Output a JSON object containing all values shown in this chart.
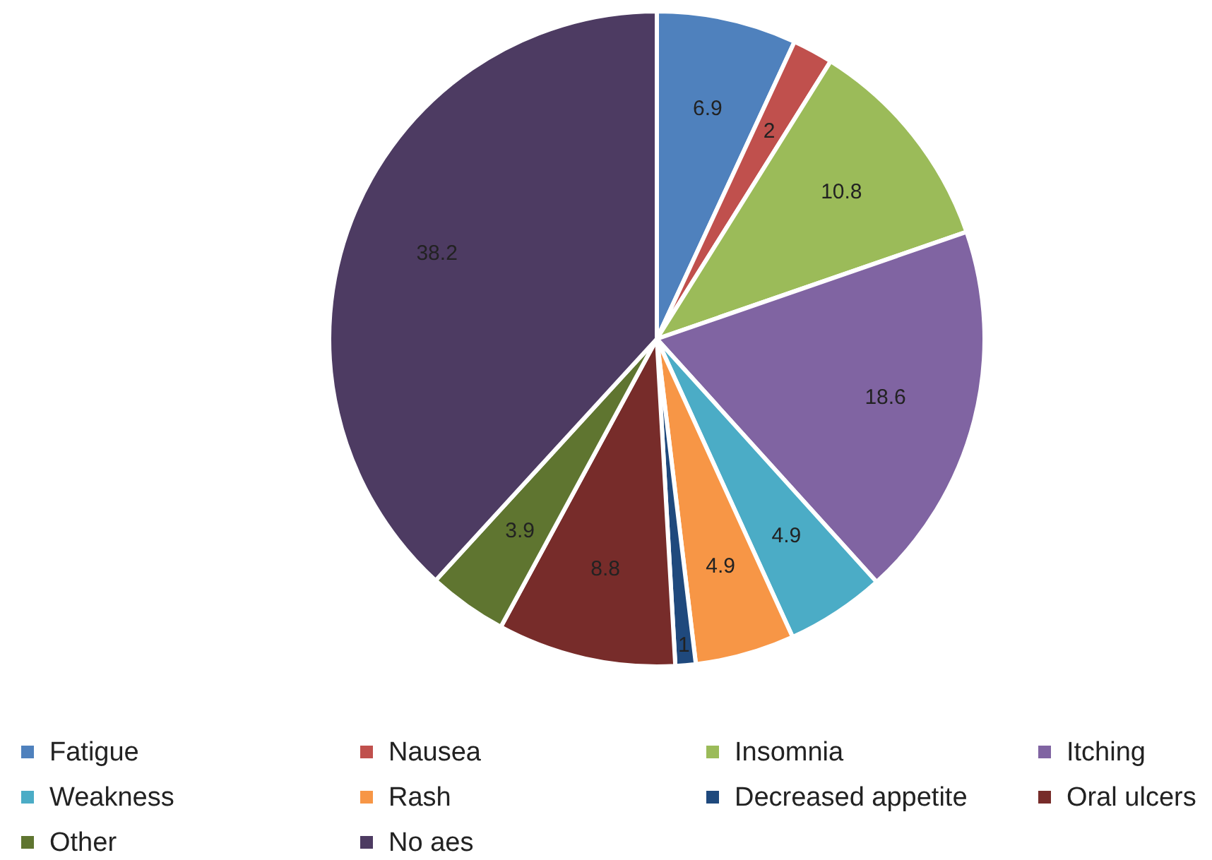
{
  "chart_data": {
    "type": "pie",
    "categories": [
      "Fatigue",
      "Nausea",
      "Insomnia",
      "Itching",
      "Weakness",
      "Rash",
      "Decreased appetite",
      "Oral ulcers",
      "Other",
      "No aes"
    ],
    "values": [
      6.9,
      2,
      10.8,
      18.6,
      4.9,
      4.9,
      1,
      8.8,
      3.9,
      38.2
    ],
    "colors": [
      "#4f81bd",
      "#c0504d",
      "#9bbb59",
      "#8064a2",
      "#4bacc6",
      "#f79646",
      "#1f497d",
      "#772c2a",
      "#5f7530",
      "#4d3b62"
    ],
    "data_labels": true,
    "legend": "bottom"
  }
}
